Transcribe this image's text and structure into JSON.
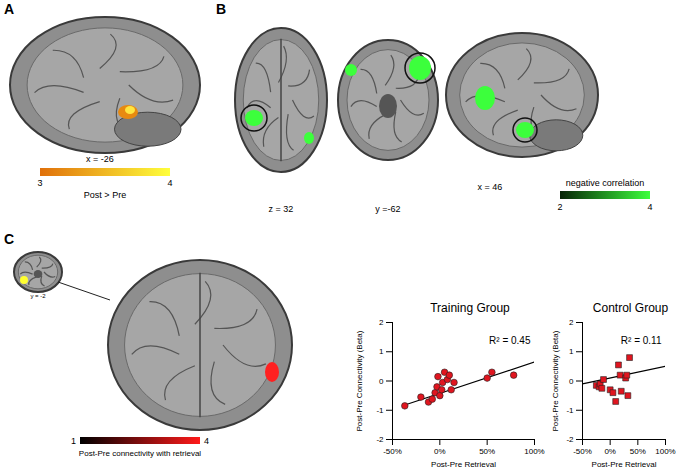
{
  "panels": {
    "A": {
      "label": "A",
      "slice": "x = -26",
      "colorbar": {
        "label": "Post > Pre",
        "range": [
          3,
          4
        ],
        "ticks": [
          3,
          4
        ],
        "colors": [
          "#e0700a",
          "#ffff3c"
        ]
      }
    },
    "B": {
      "label": "B",
      "slices": [
        "z = 32",
        "y =-62",
        "x = 46"
      ],
      "colorbar": {
        "label": "negative correlation",
        "range": [
          2,
          4
        ],
        "ticks": [
          2,
          4
        ],
        "colors": [
          "#062406",
          "#3cff3c"
        ]
      }
    },
    "C": {
      "label": "C",
      "slice": "y = -2",
      "colorbar": {
        "label": "Post-Pre connectivity with retrieval",
        "range": [
          1,
          4
        ],
        "ticks": [
          1,
          4
        ],
        "colors": [
          "#000000",
          "#ff1a1a"
        ]
      }
    }
  },
  "chart_data": [
    {
      "type": "scatter",
      "title": "Training Group",
      "x_label": "Post-Pre Retrieval",
      "y_label": "Post-Pre Connectivity (Beta)",
      "x": [
        -37,
        -20,
        -12,
        -8,
        -5,
        -3,
        -2,
        0,
        2,
        3,
        5,
        8,
        10,
        12,
        15,
        50,
        55,
        78
      ],
      "y": [
        -0.85,
        -0.55,
        -0.72,
        -0.62,
        -0.4,
        -0.2,
        0.15,
        -0.5,
        -0.3,
        -0.05,
        0.3,
        0.05,
        0.2,
        -0.3,
        -0.05,
        0.1,
        0.3,
        0.2
      ],
      "trendline": {
        "x": [
          -37,
          100
        ],
        "y": [
          -0.82,
          0.65
        ]
      },
      "annotation": "R² = 0.45",
      "color": "#e0151f",
      "marker": "circle",
      "xlim": [
        -50,
        100
      ],
      "xticks": [
        {
          "value": -50,
          "label": "-50%"
        },
        {
          "value": 0,
          "label": "0%"
        },
        {
          "value": 50,
          "label": "50%"
        },
        {
          "value": 100,
          "label": "100%"
        }
      ],
      "ylim": [
        -2,
        2
      ],
      "yticks": [
        -2,
        -1,
        0,
        1,
        2
      ],
      "grid": false
    },
    {
      "type": "scatter",
      "title": "Control Group",
      "x_label": "Post-Pre Retrieval",
      "y_label": "Post-Pre Connectivity (Beta)",
      "x": [
        -25,
        -20,
        -18,
        -15,
        -12,
        0,
        5,
        10,
        15,
        18,
        20,
        28,
        30,
        32,
        35
      ],
      "y": [
        -0.15,
        -0.2,
        -0.1,
        -0.25,
        0.05,
        -0.3,
        -0.4,
        -0.7,
        0.55,
        0.2,
        -0.35,
        0.1,
        0.2,
        -0.5,
        0.8
      ],
      "trendline": {
        "x": [
          -50,
          100
        ],
        "y": [
          -0.1,
          0.5
        ]
      },
      "annotation": "R² = 0.11",
      "color": "#e0151f",
      "marker": "square",
      "xlim": [
        -50,
        100
      ],
      "xticks": [
        {
          "value": -50,
          "label": "-50%"
        },
        {
          "value": 0,
          "label": "0%"
        },
        {
          "value": 50,
          "label": "50%"
        },
        {
          "value": 100,
          "label": "100%"
        }
      ],
      "ylim": [
        -2,
        2
      ],
      "yticks": [
        -2,
        -1,
        0,
        1,
        2
      ],
      "grid": false
    }
  ]
}
